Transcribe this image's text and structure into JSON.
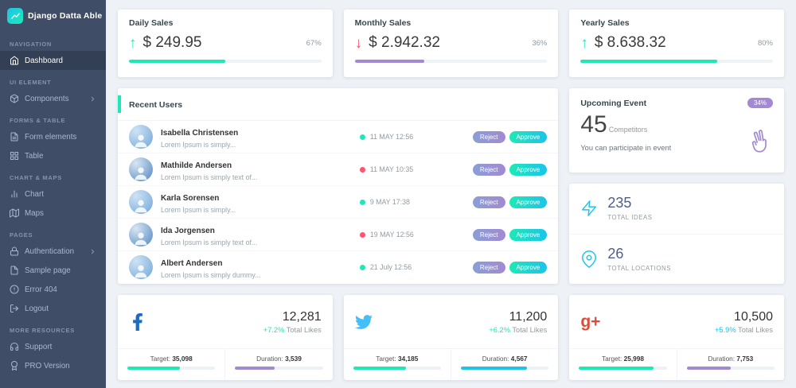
{
  "colors": {
    "sidebar_bg": "#3f4d67",
    "sidebar_active_bg": "#333f54",
    "accent_teal": "#1de9b6",
    "accent_blue": "#1dc4e9",
    "accent_purple": "#a389d4",
    "accent_purple_light": "#899fd4",
    "danger_red": "#ff5370",
    "facebook_blue": "#1b6cc0",
    "twitter_blue": "#42c0fb",
    "googleplus_red": "#dd4b39"
  },
  "sidebar": {
    "brand": "Django Datta Able",
    "sections": [
      {
        "label": "NAVIGATION",
        "items": [
          {
            "label": "Dashboard"
          }
        ]
      },
      {
        "label": "UI ELEMENT",
        "items": [
          {
            "label": "Components"
          }
        ]
      },
      {
        "label": "FORMS & TABLE",
        "items": [
          {
            "label": "Form elements"
          },
          {
            "label": "Table"
          }
        ]
      },
      {
        "label": "CHART & MAPS",
        "items": [
          {
            "label": "Chart"
          },
          {
            "label": "Maps"
          }
        ]
      },
      {
        "label": "PAGES",
        "items": [
          {
            "label": "Authentication"
          },
          {
            "label": "Sample page"
          },
          {
            "label": "Error 404"
          },
          {
            "label": "Logout"
          }
        ]
      },
      {
        "label": "MORE RESOURCES",
        "items": [
          {
            "label": "Support"
          },
          {
            "label": "PRO Version"
          }
        ]
      }
    ]
  },
  "sales": [
    {
      "title": "Daily Sales",
      "arrow": "↑",
      "arrow_color": "#1de9b6",
      "amount": "$ 249.95",
      "percent": "67%",
      "progress": 50,
      "bar_color": "#1de9b6"
    },
    {
      "title": "Monthly Sales",
      "arrow": "↓",
      "arrow_color": "#ff5370",
      "amount": "$ 2.942.32",
      "percent": "36%",
      "progress": 36,
      "bar_color": "#a389d4"
    },
    {
      "title": "Yearly Sales",
      "arrow": "↑",
      "arrow_color": "#1de9b6",
      "amount": "$ 8.638.32",
      "percent": "80%",
      "progress": 71,
      "bar_color": "#1de9b6"
    }
  ],
  "recent_users": {
    "title": "Recent Users",
    "rows": [
      {
        "name": "Isabella Christensen",
        "text": "Lorem Ipsum is simply...",
        "time": "11 MAY 12:56",
        "dot_color": "#1de9b6",
        "reject": "Reject",
        "approve": "Approve"
      },
      {
        "name": "Mathilde Andersen",
        "text": "Lorem Ipsum is simply text of...",
        "time": "11 MAY 10:35",
        "dot_color": "#ff5370",
        "reject": "Reject",
        "approve": "Approve"
      },
      {
        "name": "Karla Sorensen",
        "text": "Lorem Ipsum is simply...",
        "time": "9 MAY 17:38",
        "dot_color": "#1de9b6",
        "reject": "Reject",
        "approve": "Approve"
      },
      {
        "name": "Ida Jorgensen",
        "text": "Lorem Ipsum is simply text of...",
        "time": "19 MAY 12:56",
        "dot_color": "#ff5370",
        "reject": "Reject",
        "approve": "Approve"
      },
      {
        "name": "Albert Andersen",
        "text": "Lorem Ipsum is simply dummy...",
        "time": "21 July 12:56",
        "dot_color": "#1de9b6",
        "reject": "Reject",
        "approve": "Approve"
      }
    ]
  },
  "upcoming_event": {
    "title": "Upcoming Event",
    "badge": "34%",
    "badge_color": "#a389d4",
    "count": "45",
    "count_label": "Competitors",
    "note": "You can participate in event"
  },
  "stats": [
    {
      "value": "235",
      "label": "TOTAL IDEAS"
    },
    {
      "value": "26",
      "label": "TOTAL LOCATIONS"
    }
  ],
  "social": [
    {
      "network": "facebook",
      "value": "12,281",
      "change": "+7.2%",
      "change_color": "#1de9b6",
      "change_label": "Total Likes",
      "target_label": "Target:",
      "target_value": "35,098",
      "target_progress": 60,
      "target_bar_color": "#1de9b6",
      "duration_label": "Duration:",
      "duration_value": "3,539",
      "duration_progress": 45,
      "duration_bar_color": "#a389d4"
    },
    {
      "network": "twitter",
      "value": "11,200",
      "change": "+6.2%",
      "change_color": "#1de9b6",
      "change_label": "Total Likes",
      "target_label": "Target:",
      "target_value": "34,185",
      "target_progress": 60,
      "target_bar_color": "#1de9b6",
      "duration_label": "Duration:",
      "duration_value": "4,567",
      "duration_progress": 75,
      "duration_bar_color": "#1dc4e9"
    },
    {
      "network": "google-plus",
      "value": "10,500",
      "change": "+5.9%",
      "change_color": "#1dc4e9",
      "change_label": "Total Likes",
      "target_label": "Target:",
      "target_value": "25,998",
      "target_progress": 85,
      "target_bar_color": "#1de9b6",
      "duration_label": "Duration:",
      "duration_value": "7,753",
      "duration_progress": 50,
      "duration_bar_color": "#a389d4"
    }
  ]
}
